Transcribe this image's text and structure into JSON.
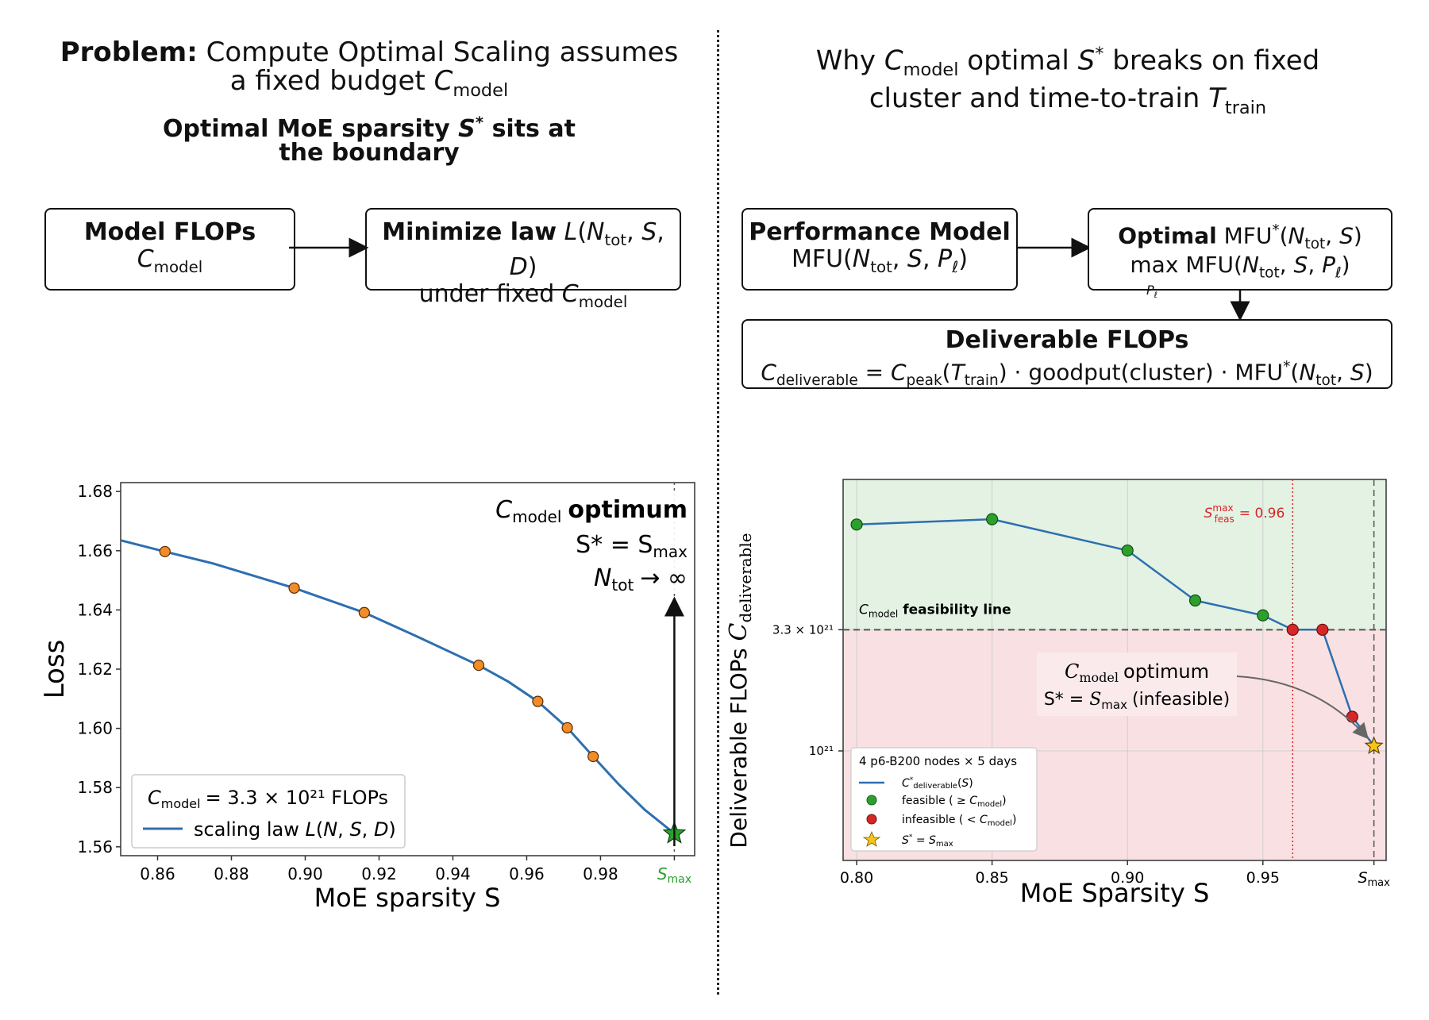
{
  "left": {
    "title_bold": "Problem:",
    "title_rest": "Compute Optimal Scaling assumes",
    "title_line2": "a fixed budget",
    "subtitle_line1": "Optimal MoE sparsity",
    "subtitle_line1_end": "sits at",
    "subtitle_line2": "the boundary",
    "box1_title": "Model FLOPs",
    "box1_sub": "model",
    "box2_title": "Minimize law",
    "box2_line2": "under fixed"
  },
  "right": {
    "title_part1": "Why",
    "title_part2": "optimal",
    "title_part3": "breaks on fixed",
    "title_line2": "cluster and time-to-train",
    "box3_title": "Performance Model",
    "box4_title": "Optimal",
    "box5_title": "Deliverable FLOPs"
  },
  "chart_data": [
    {
      "type": "line",
      "xlabel": "MoE sparsity S",
      "ylabel": "Loss",
      "xlim": [
        0.85,
        1.0055
      ],
      "ylim": [
        1.557,
        1.683
      ],
      "x_ticks": [
        "0.86",
        "0.88",
        "0.90",
        "0.92",
        "0.94",
        "0.96",
        "0.98"
      ],
      "x_tick_values": [
        0.86,
        0.88,
        0.9,
        0.92,
        0.94,
        0.96,
        0.98
      ],
      "x_extra_tick": "S_max",
      "y_ticks": [
        "1.56",
        "1.58",
        "1.60",
        "1.62",
        "1.64",
        "1.66",
        "1.68"
      ],
      "y_tick_values": [
        1.56,
        1.58,
        1.6,
        1.62,
        1.64,
        1.66,
        1.68
      ],
      "curve": {
        "x": [
          0.85,
          0.862,
          0.875,
          0.897,
          0.916,
          0.93,
          0.947,
          0.955,
          0.963,
          0.971,
          0.978,
          0.985,
          0.992,
          1.0
        ],
        "y": [
          1.6635,
          1.6597,
          1.6557,
          1.6474,
          1.6391,
          1.6312,
          1.6213,
          1.6158,
          1.6091,
          1.6002,
          1.5905,
          1.581,
          1.5725,
          1.5645
        ]
      },
      "points": {
        "x": [
          0.862,
          0.897,
          0.916,
          0.947,
          0.963,
          0.971,
          0.978
        ],
        "y": [
          1.6597,
          1.6474,
          1.6391,
          1.6213,
          1.6091,
          1.6002,
          1.5905
        ]
      },
      "star": {
        "x": 1.0,
        "y": 1.5645
      },
      "legend": [
        "= 3.3 × 10²¹ FLOPs",
        "scaling law"
      ],
      "legend_position": "lower-left",
      "annotation_title": "optimum",
      "annotation_line2": "S* = S",
      "annotation_line3": "→ ∞",
      "colors": {
        "line": "#2e6fb0",
        "point": "#f28c28",
        "star": "#2ca02c",
        "smax": "#2ca02c"
      }
    },
    {
      "type": "line",
      "xlabel": "MoE Sparsity S",
      "ylabel": "Deliverable FLOPs",
      "xlim": [
        0.795,
        0.9955
      ],
      "x_ticks": [
        "0.80",
        "0.85",
        "0.90",
        "0.95"
      ],
      "x_tick_values": [
        0.8,
        0.85,
        0.9,
        0.95
      ],
      "x_extra_tick": "S_max",
      "y_ticks": [
        "3.3 × 10²¹",
        "10²¹"
      ],
      "log_y": true,
      "feasibility_label": "feasibility line",
      "threshold_label": "= 0.96",
      "series_x": [
        0.8,
        0.85,
        0.9,
        0.925,
        0.95,
        0.961,
        0.972,
        0.983,
        0.991
      ],
      "series_y": [
        9.3e+21,
        9.8e+21,
        7.2e+21,
        4.4e+21,
        3.8e+21,
        3.3e+21,
        3.3e+21,
        1.4e+21,
        1.05e+21
      ],
      "feasible_x": [
        0.8,
        0.85,
        0.9,
        0.925,
        0.95
      ],
      "feasible_y": [
        9.3e+21,
        9.8e+21,
        7.2e+21,
        4.4e+21,
        3.8e+21
      ],
      "infeasible_x": [
        0.961,
        0.972,
        0.983
      ],
      "infeasible_y": [
        3.3e+21,
        3.3e+21,
        1.4e+21
      ],
      "star": {
        "x": 0.991,
        "y": 1.05e+21
      },
      "annotation_line1": "optimum",
      "annotation_line2": "(infeasible)",
      "legend_title": "4 p6-B200 nodes × 5 days",
      "legend": [
        "feasible ( ≥",
        "infeasible ( <"
      ],
      "legend_position": "lower-left",
      "colors": {
        "line": "#2e6fb0",
        "feasible": "#2ca02c",
        "infeasible": "#d62728",
        "star": "#f5c518",
        "green_bg": "#e3f2e3",
        "red_bg": "#f9e1e3",
        "threshold": "#d62728"
      }
    }
  ]
}
